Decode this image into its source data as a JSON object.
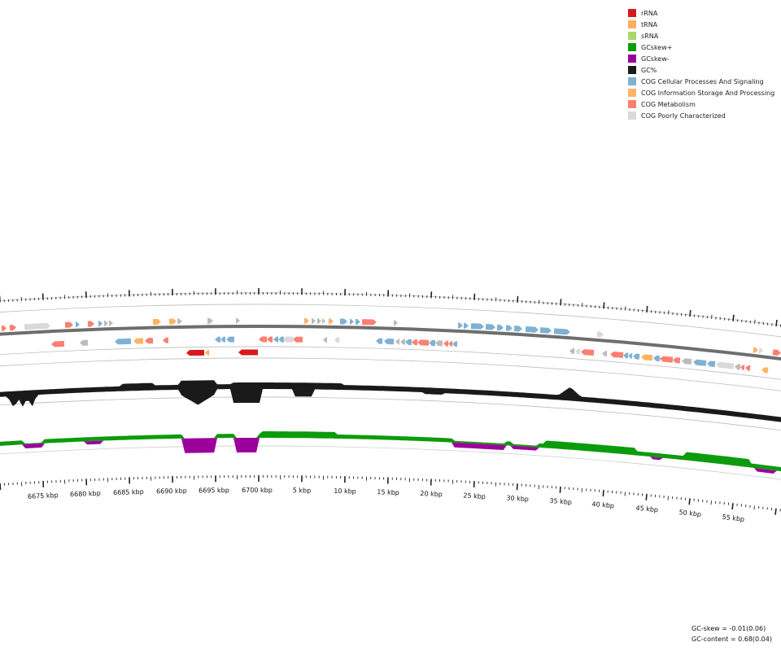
{
  "legend": [
    {
      "label": "rRNA",
      "color": "#d7191c"
    },
    {
      "label": "tRNA",
      "color": "#fdae61"
    },
    {
      "label": "sRNA",
      "color": "#a6d96a"
    },
    {
      "label": "GCskew+",
      "color": "#0c9b0c"
    },
    {
      "label": "GCskew-",
      "color": "#9b009b"
    },
    {
      "label": "GC%",
      "color": "#1a1a1a"
    },
    {
      "label": "COG Cellular Processes And Signaling",
      "color": "#7fb1d3"
    },
    {
      "label": "COG Information Storage And Processing",
      "color": "#fdb462"
    },
    {
      "label": "COG Metabolism",
      "color": "#fb8072"
    },
    {
      "label": "COG Poorly Characterized",
      "color": "#d9d9d9"
    }
  ],
  "scale_labels": [
    "6675 kbp",
    "6680 kbp",
    "6685 kbp",
    "6690 kbp",
    "6695 kbp",
    "6700 kbp",
    "5 kbp",
    "10 kbp",
    "15 kbp",
    "20 kbp",
    "25 kbp",
    "30 kbp",
    "35 kbp",
    "40 kbp",
    "45 kbp",
    "50 kbp",
    "55 kbp"
  ],
  "stats": {
    "gc_skew": "GC-skew = -0.01(0.06)",
    "gc_content": "GC-content = 0.68(0.04)"
  },
  "colors": {
    "rRNA": "#d7191c",
    "tRNA": "#fdae61",
    "cellular": "#7fb1d3",
    "info": "#fdb462",
    "metab": "#fb8072",
    "poor": "#d9d9d9",
    "gray": "#bbbbbb",
    "gc": "#1a1a1a",
    "skew_pos": "#0c9b0c",
    "skew_neg": "#9b009b"
  }
}
